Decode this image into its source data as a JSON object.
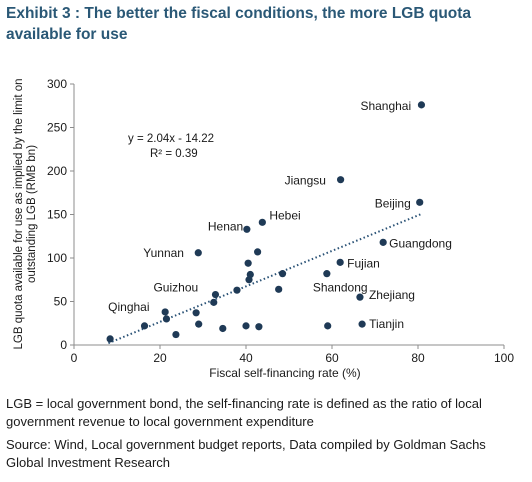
{
  "header": {
    "title": "Exhibit 3 : The better the fiscal conditions, the more LGB quota available for use"
  },
  "footer": {
    "definition": "LGB = local government bond, the self-financing rate is defined as the ratio of local government revenue to local government expenditure",
    "source": "Source: Wind, Local government budget reports, Data compiled by Goldman Sachs Global Investment Research"
  },
  "colors": {
    "title": "#2a5876",
    "marker": "#1f3a56",
    "trendline": "#2a5276",
    "axis": "#8c8c8c"
  },
  "chart_data": {
    "type": "scatter",
    "title": "",
    "xlabel": "Fiscal self-financing rate (%)",
    "ylabel": "LGB quota available for use as implied by the limit on outstanding LGB (RMB bn)",
    "xlim": [
      0,
      100
    ],
    "ylim": [
      0,
      300
    ],
    "xticks": [
      0,
      20,
      40,
      60,
      80,
      100
    ],
    "yticks": [
      0,
      50,
      100,
      150,
      200,
      250,
      300
    ],
    "grid": false,
    "trendline": {
      "slope": 2.04,
      "intercept": -14.22,
      "style": "dotted",
      "equation": "y = 2.04x - 14.22",
      "r2": "R² = 0.39"
    },
    "points": [
      {
        "x": 80.8,
        "y": 276,
        "label": "Shanghai"
      },
      {
        "x": 62.0,
        "y": 190,
        "label": "Jiangsu"
      },
      {
        "x": 80.4,
        "y": 164,
        "label": "Beijing"
      },
      {
        "x": 71.9,
        "y": 118,
        "label": "Guangdong"
      },
      {
        "x": 43.8,
        "y": 141,
        "label": "Hebei"
      },
      {
        "x": 40.2,
        "y": 133,
        "label": "Henan"
      },
      {
        "x": 28.9,
        "y": 106,
        "label": "Yunnan"
      },
      {
        "x": 61.9,
        "y": 95,
        "label": "Fujian"
      },
      {
        "x": 58.8,
        "y": 82,
        "label": "Shandong"
      },
      {
        "x": 66.5,
        "y": 55,
        "label": "Zhejiang"
      },
      {
        "x": 67.0,
        "y": 24,
        "label": "Tianjin"
      },
      {
        "x": 32.9,
        "y": 58,
        "label": "Guizhou"
      },
      {
        "x": 21.2,
        "y": 38,
        "label": "Qinghai"
      },
      {
        "x": 8.4,
        "y": 7,
        "label": ""
      },
      {
        "x": 16.4,
        "y": 22,
        "label": ""
      },
      {
        "x": 21.5,
        "y": 30,
        "label": ""
      },
      {
        "x": 23.7,
        "y": 12,
        "label": ""
      },
      {
        "x": 28.4,
        "y": 37,
        "label": ""
      },
      {
        "x": 29.0,
        "y": 24,
        "label": ""
      },
      {
        "x": 32.5,
        "y": 49,
        "label": ""
      },
      {
        "x": 34.6,
        "y": 19,
        "label": ""
      },
      {
        "x": 37.9,
        "y": 63,
        "label": ""
      },
      {
        "x": 40.0,
        "y": 22,
        "label": ""
      },
      {
        "x": 40.5,
        "y": 94,
        "label": ""
      },
      {
        "x": 40.7,
        "y": 75,
        "label": ""
      },
      {
        "x": 41.0,
        "y": 81,
        "label": ""
      },
      {
        "x": 42.7,
        "y": 107,
        "label": ""
      },
      {
        "x": 43.0,
        "y": 21,
        "label": ""
      },
      {
        "x": 47.6,
        "y": 64,
        "label": ""
      },
      {
        "x": 48.5,
        "y": 82,
        "label": ""
      },
      {
        "x": 59.0,
        "y": 22,
        "label": ""
      }
    ]
  }
}
